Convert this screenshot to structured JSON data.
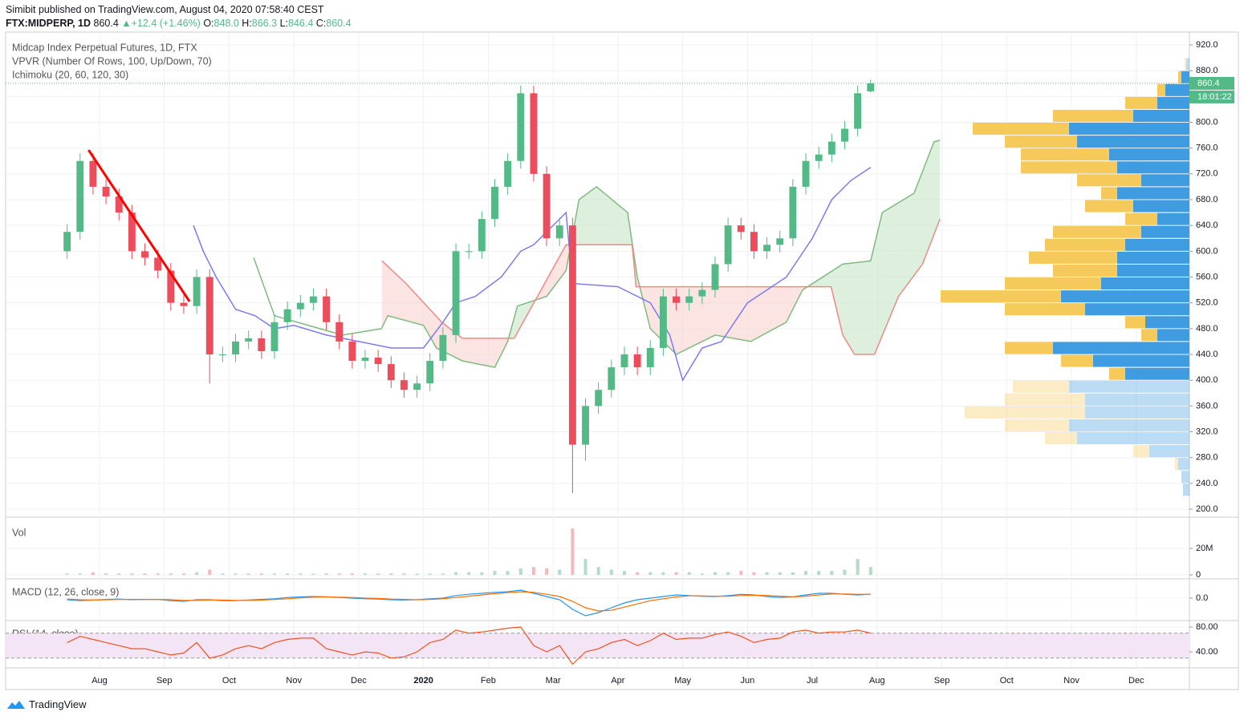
{
  "header": {
    "publisher": "Simibit published on TradingView.com, August 04, 2020 07:58:40 CEST",
    "symbol": "FTX:MIDPERP, 1D",
    "last": "860.4",
    "arrow": "▲",
    "change": "+12.4 (+1.46%)",
    "open_label": "O:",
    "open": "848.0",
    "high_label": "H:",
    "high": "866.3",
    "low_label": "L:",
    "low": "846.4",
    "close_label": "C:",
    "close": "860.4",
    "countdown": "18:01:22"
  },
  "footer": {
    "brand": "TradingView"
  },
  "chart_data": [
    {
      "type": "candlestick",
      "title": "Midcap Index Perpetual Futures, 1D, FTX",
      "indicators": [
        "VPVR (Number Of Rows, 100, Up/Down, 70)",
        "Ichimoku (20, 60, 120, 30)"
      ],
      "up_color": "#53b987",
      "down_color": "#eb4d5c",
      "x": [
        -0.5,
        -0.3,
        -0.1,
        0.1,
        0.3,
        0.5,
        0.7,
        0.9,
        1.1,
        1.3,
        1.5,
        1.7,
        1.9,
        2.1,
        2.3,
        2.5,
        2.7,
        2.9,
        3.1,
        3.3,
        3.5,
        3.7,
        3.9,
        4.1,
        4.3,
        4.5,
        4.7,
        4.9,
        5.1,
        5.3,
        5.5,
        5.7,
        5.9,
        6.1,
        6.3,
        6.5,
        6.7,
        6.9,
        7.1,
        7.3,
        7.5,
        7.7,
        7.9,
        8.1,
        8.3,
        8.5,
        8.7,
        8.9,
        9.1,
        9.3,
        9.5,
        9.7,
        9.9,
        10.1,
        10.3,
        10.5,
        10.7,
        10.9,
        11.1,
        11.3,
        11.5,
        11.7,
        11.9
      ],
      "open": [
        600,
        630,
        740,
        700,
        685,
        660,
        600,
        590,
        570,
        520,
        515,
        560,
        440,
        440,
        460,
        465,
        445,
        490,
        510,
        520,
        530,
        490,
        460,
        430,
        435,
        425,
        400,
        385,
        395,
        430,
        470,
        600,
        600,
        650,
        700,
        740,
        845,
        720,
        620,
        640,
        300,
        360,
        385,
        420,
        440,
        420,
        450,
        530,
        520,
        530,
        540,
        580,
        640,
        630,
        600,
        610,
        620,
        700,
        740,
        750,
        770,
        790,
        848
      ],
      "high": [
        642,
        752,
        752,
        712,
        697,
        672,
        612,
        602,
        582,
        532,
        572,
        572,
        452,
        472,
        477,
        477,
        502,
        522,
        532,
        542,
        542,
        502,
        472,
        447,
        447,
        437,
        412,
        407,
        442,
        482,
        612,
        612,
        662,
        712,
        752,
        857,
        857,
        732,
        652,
        652,
        372,
        397,
        432,
        452,
        452,
        462,
        542,
        542,
        542,
        552,
        592,
        652,
        652,
        642,
        622,
        632,
        712,
        752,
        762,
        782,
        802,
        857,
        866.3
      ],
      "low": [
        588,
        618,
        688,
        673,
        648,
        588,
        578,
        558,
        508,
        503,
        503,
        395,
        428,
        428,
        448,
        433,
        433,
        478,
        498,
        508,
        478,
        448,
        418,
        418,
        413,
        388,
        373,
        373,
        383,
        418,
        458,
        588,
        588,
        638,
        688,
        728,
        708,
        608,
        608,
        225,
        275,
        348,
        373,
        408,
        408,
        408,
        438,
        508,
        508,
        518,
        528,
        568,
        618,
        588,
        588,
        598,
        608,
        688,
        728,
        738,
        758,
        778,
        846.4
      ],
      "close": [
        630,
        740,
        700,
        685,
        660,
        600,
        590,
        570,
        520,
        515,
        560,
        440,
        440,
        460,
        465,
        445,
        490,
        510,
        520,
        530,
        490,
        460,
        430,
        435,
        425,
        400,
        385,
        395,
        430,
        470,
        600,
        600,
        650,
        700,
        740,
        845,
        720,
        620,
        640,
        300,
        360,
        385,
        420,
        440,
        420,
        450,
        530,
        520,
        530,
        540,
        580,
        640,
        630,
        600,
        610,
        620,
        700,
        740,
        750,
        770,
        790,
        845,
        860.4
      ],
      "xlim": [
        -1.449,
        16.82
      ],
      "xticks": [
        {
          "value": 0,
          "label": "Aug"
        },
        {
          "value": 1,
          "label": "Sep"
        },
        {
          "value": 2,
          "label": "Oct"
        },
        {
          "value": 3,
          "label": "Nov"
        },
        {
          "value": 4,
          "label": "Dec"
        },
        {
          "value": 5,
          "label": "2020"
        },
        {
          "value": 6,
          "label": "Feb"
        },
        {
          "value": 7,
          "label": "Mar"
        },
        {
          "value": 8,
          "label": "Apr"
        },
        {
          "value": 9,
          "label": "May"
        },
        {
          "value": 10,
          "label": "Jun"
        },
        {
          "value": 11,
          "label": "Jul"
        },
        {
          "value": 12,
          "label": "Aug"
        },
        {
          "value": 13,
          "label": "Sep"
        },
        {
          "value": 14,
          "label": "Oct"
        },
        {
          "value": 15,
          "label": "Nov"
        },
        {
          "value": 16,
          "label": "Dec"
        }
      ],
      "ylim": [
        187.6,
        939.9
      ],
      "yticks": [
        {
          "value": 200,
          "label": "200.0"
        },
        {
          "value": 240,
          "label": "240.0"
        },
        {
          "value": 280,
          "label": "280.0"
        },
        {
          "value": 320,
          "label": "320.0"
        },
        {
          "value": 360,
          "label": "360.0"
        },
        {
          "value": 400,
          "label": "400.0"
        },
        {
          "value": 440,
          "label": "440.0"
        },
        {
          "value": 480,
          "label": "480.0"
        },
        {
          "value": 520,
          "label": "520.0"
        },
        {
          "value": 560,
          "label": "560.0"
        },
        {
          "value": 600,
          "label": "600.0"
        },
        {
          "value": 640,
          "label": "640.0"
        },
        {
          "value": 680,
          "label": "680.0"
        },
        {
          "value": 720,
          "label": "720.0"
        },
        {
          "value": 760,
          "label": "760.0"
        },
        {
          "value": 800,
          "label": "800.0"
        },
        {
          "value": 840,
          "label": "840.0"
        },
        {
          "value": 880,
          "label": "880.0"
        },
        {
          "value": 920,
          "label": "920.0"
        }
      ],
      "grid": true,
      "last_price": 860.4,
      "trendline": {
        "color": "#ff0000",
        "x": [
          -0.17,
          1.39
        ],
        "values": [
          757,
          522
        ]
      },
      "ichimoku": {
        "conversion": {
          "color": "#7b7bf0",
          "x": [
            1.45,
            1.6,
            1.8,
            2.1,
            2.4,
            2.7,
            3.0,
            3.5,
            4.0,
            4.5,
            5.0,
            5.3,
            5.5,
            5.8,
            6.2,
            6.5,
            6.7,
            7.2,
            7.3,
            8.0,
            8.5,
            8.8,
            9.0,
            9.3,
            9.6,
            10.0,
            10.3,
            10.6,
            11.0,
            11.3,
            11.6,
            11.9
          ],
          "values": [
            640,
            600,
            560,
            510,
            500,
            480,
            485,
            470,
            460,
            450,
            450,
            490,
            520,
            530,
            560,
            600,
            610,
            660,
            550,
            545,
            520,
            470,
            400,
            450,
            460,
            520,
            540,
            560,
            620,
            680,
            710,
            730
          ]
        },
        "span_a": {
          "color": "#7fba7f",
          "fill": "#cfe8cf",
          "x": [
            2.38,
            2.7,
            3.4,
            3.75,
            4.35,
            4.45,
            5.0,
            5.2,
            5.6,
            6.1,
            6.3,
            6.45,
            6.9,
            7.2,
            7.4,
            7.67,
            8.15,
            8.3,
            8.5,
            8.9,
            9.5,
            10.05,
            10.6,
            10.85,
            11.47,
            11.9,
            12.08,
            12.57,
            12.88,
            12.97
          ],
          "values": [
            590,
            500,
            480,
            470,
            480,
            500,
            485,
            450,
            430,
            420,
            460,
            515,
            530,
            570,
            680,
            700,
            660,
            560,
            480,
            440,
            470,
            460,
            490,
            540,
            580,
            585,
            660,
            690,
            770,
            772
          ]
        },
        "span_b": {
          "color": "#ee8a84",
          "fill": "#fad8d6",
          "x": [
            4.36,
            4.73,
            5.28,
            5.6,
            6.4,
            7.2,
            8.22,
            8.28,
            11.29,
            11.47,
            11.65,
            11.96,
            12.33,
            12.7,
            12.97
          ],
          "values": [
            585,
            550,
            490,
            465,
            465,
            610,
            610,
            545,
            545,
            470,
            440,
            440,
            530,
            580,
            650
          ]
        }
      },
      "vpvr": {
        "up_color": "#3f9ce0",
        "down_color": "#f5c95a",
        "value_area": [
          400,
          870
        ],
        "xlim": [
          0,
          1475
        ],
        "prices": [
          230,
          250,
          270,
          290,
          310,
          330,
          350,
          370,
          390,
          410,
          430,
          450,
          470,
          490,
          510,
          530,
          550,
          570,
          590,
          610,
          630,
          650,
          670,
          690,
          710,
          730,
          750,
          770,
          790,
          810,
          830,
          850,
          870,
          890
        ],
        "up": [
          8,
          10,
          14,
          50,
          140,
          150,
          130,
          130,
          150,
          80,
          120,
          170,
          40,
          55,
          130,
          160,
          110,
          90,
          90,
          80,
          60,
          40,
          70,
          90,
          60,
          90,
          100,
          140,
          150,
          70,
          40,
          30,
          10,
          4
        ],
        "down": [
          0,
          0,
          4,
          20,
          40,
          80,
          150,
          100,
          70,
          20,
          40,
          60,
          20,
          25,
          100,
          150,
          120,
          80,
          110,
          100,
          110,
          40,
          60,
          20,
          80,
          120,
          110,
          90,
          120,
          100,
          40,
          10,
          4,
          2
        ]
      }
    },
    {
      "type": "bar",
      "title": "Vol",
      "up_color": "#b3dcc6",
      "down_color": "#f4b8bd",
      "values": [
        1000000,
        1000000,
        2000000,
        1000000,
        1000000,
        1000000,
        1000000,
        1000000,
        1000000,
        1000000,
        2000000,
        4000000,
        1000000,
        1000000,
        1000000,
        1000000,
        1000000,
        1000000,
        1000000,
        1000000,
        1000000,
        1000000,
        1000000,
        1000000,
        1000000,
        1000000,
        1000000,
        1000000,
        1000000,
        1000000,
        2000000,
        2000000,
        2000000,
        3000000,
        3000000,
        5000000,
        6000000,
        5000000,
        4000000,
        35000000,
        12000000,
        6000000,
        4000000,
        3000000,
        2000000,
        2000000,
        2000000,
        2000000,
        2000000,
        1000000,
        2000000,
        2000000,
        3000000,
        2000000,
        2000000,
        2000000,
        2000000,
        3000000,
        3000000,
        3000000,
        4000000,
        12000000,
        6000000
      ],
      "ylim": [
        -3000000,
        41800000
      ],
      "yticks": [
        0,
        {
          "value": 20000000,
          "label": "20M"
        }
      ]
    },
    {
      "type": "line",
      "title": "MACD (12, 26, close, 9)",
      "series": [
        {
          "color": "#2196f3",
          "values": [
            -5,
            -8,
            -6,
            -4,
            -3,
            -5,
            -4,
            -4,
            -8,
            -10,
            -5,
            -5,
            -8,
            -8,
            -6,
            -4,
            -2,
            2,
            4,
            5,
            4,
            2,
            0,
            -2,
            -3,
            -5,
            -6,
            -5,
            -2,
            0,
            8,
            12,
            15,
            18,
            20,
            25,
            15,
            5,
            -5,
            -35,
            -55,
            -45,
            -30,
            -15,
            -5,
            0,
            5,
            10,
            8,
            6,
            5,
            8,
            12,
            10,
            5,
            2,
            4,
            10,
            15,
            15,
            12,
            10,
            12
          ]
        },
        {
          "color": "#ff6d00",
          "values": [
            -3,
            -5,
            -6,
            -5,
            -4,
            -4,
            -4,
            -4,
            -5,
            -7,
            -7,
            -6,
            -6,
            -7,
            -7,
            -6,
            -4,
            -2,
            1,
            3,
            4,
            3,
            2,
            0,
            -1,
            -3,
            -4,
            -5,
            -4,
            -2,
            2,
            6,
            10,
            14,
            17,
            20,
            18,
            12,
            5,
            -10,
            -30,
            -40,
            -38,
            -28,
            -18,
            -8,
            -2,
            4,
            7,
            7,
            6,
            6,
            8,
            9,
            8,
            6,
            4,
            6,
            10,
            13,
            13,
            12,
            12
          ]
        }
      ],
      "ylim": [
        -70,
        60
      ],
      "yticks": [
        {
          "value": 0,
          "label": "0.0"
        }
      ]
    },
    {
      "type": "line",
      "title": "RSI (14, close)",
      "band": [
        30,
        70
      ],
      "band_color": "#f3e5f5",
      "series": [
        {
          "color": "#f4511e",
          "values": [
            55,
            65,
            60,
            55,
            50,
            45,
            45,
            40,
            35,
            38,
            55,
            30,
            35,
            45,
            50,
            45,
            55,
            60,
            62,
            62,
            45,
            40,
            35,
            40,
            38,
            30,
            32,
            40,
            55,
            60,
            75,
            70,
            72,
            75,
            78,
            80,
            50,
            40,
            50,
            20,
            40,
            45,
            55,
            60,
            50,
            58,
            70,
            60,
            62,
            62,
            68,
            72,
            65,
            55,
            60,
            62,
            72,
            75,
            70,
            72,
            72,
            75,
            70
          ]
        }
      ],
      "ylim": [
        14.2,
        90.3
      ],
      "yticks": [
        {
          "value": 40,
          "label": "40.00"
        },
        {
          "value": 80,
          "label": "80.00"
        }
      ]
    }
  ]
}
